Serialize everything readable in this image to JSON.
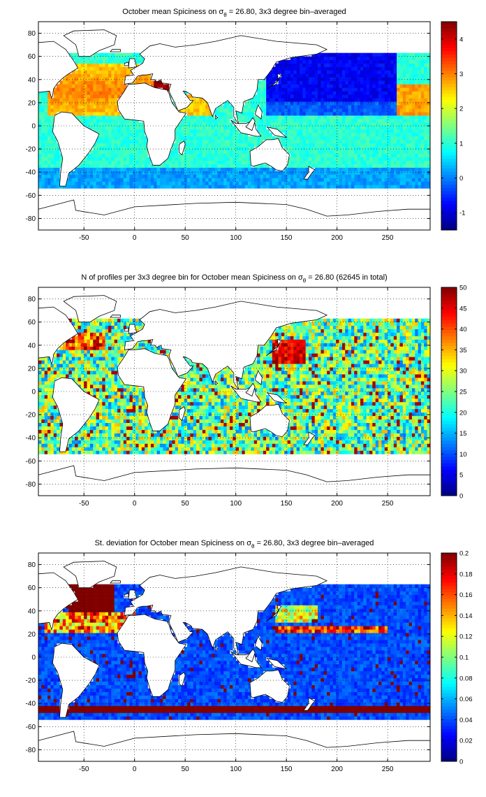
{
  "figure": {
    "background": "#ffffff",
    "colormap": "jet"
  },
  "chart_data": [
    {
      "type": "heatmap",
      "title_parts": [
        "October mean Spiciness on ",
        "σ",
        "θ",
        " = 26.80, 3x3 degree bin–averaged"
      ],
      "x_ticks": [
        -50,
        0,
        50,
        100,
        150,
        200,
        250
      ],
      "y_ticks": [
        80,
        60,
        40,
        20,
        0,
        -20,
        -40,
        -60,
        -80
      ],
      "xlim": [
        -95,
        292
      ],
      "ylim": [
        -90,
        90
      ],
      "grid": "dotted",
      "colorbar": {
        "ticks": [
          -1,
          0,
          1,
          2,
          3,
          4
        ],
        "range": [
          -1.5,
          4.5
        ]
      },
      "field": "spiciness"
    },
    {
      "type": "heatmap",
      "title_parts": [
        "N of profiles per 3x3 degree bin for October mean Spiciness on ",
        "σ",
        "θ",
        " = 26.80 (62645 in total)"
      ],
      "x_ticks": [
        -50,
        0,
        50,
        100,
        150,
        200,
        250
      ],
      "y_ticks": [
        80,
        60,
        40,
        20,
        0,
        -20,
        -40,
        -60,
        -80
      ],
      "xlim": [
        -95,
        292
      ],
      "ylim": [
        -90,
        90
      ],
      "grid": "dotted",
      "colorbar": {
        "ticks": [
          0,
          5,
          10,
          15,
          20,
          25,
          30,
          35,
          40,
          45,
          50
        ],
        "range": [
          0,
          50
        ]
      },
      "field": "count"
    },
    {
      "type": "heatmap",
      "title_parts": [
        "St. deviation for October mean Spiciness on ",
        "σ",
        "θ",
        " = 26.80, 3x3 degree bin–averaged"
      ],
      "x_ticks": [
        -50,
        0,
        50,
        100,
        150,
        200,
        250
      ],
      "y_ticks": [
        80,
        60,
        40,
        20,
        0,
        -20,
        -40,
        -60,
        -80
      ],
      "xlim": [
        -95,
        292
      ],
      "ylim": [
        -90,
        90
      ],
      "grid": "dotted",
      "colorbar": {
        "ticks": [
          0,
          0.02,
          0.04,
          0.06,
          0.08,
          0.1,
          0.12,
          0.14,
          0.16,
          0.18,
          0.2
        ],
        "range": [
          0,
          0.2
        ]
      },
      "field": "stdev"
    }
  ]
}
